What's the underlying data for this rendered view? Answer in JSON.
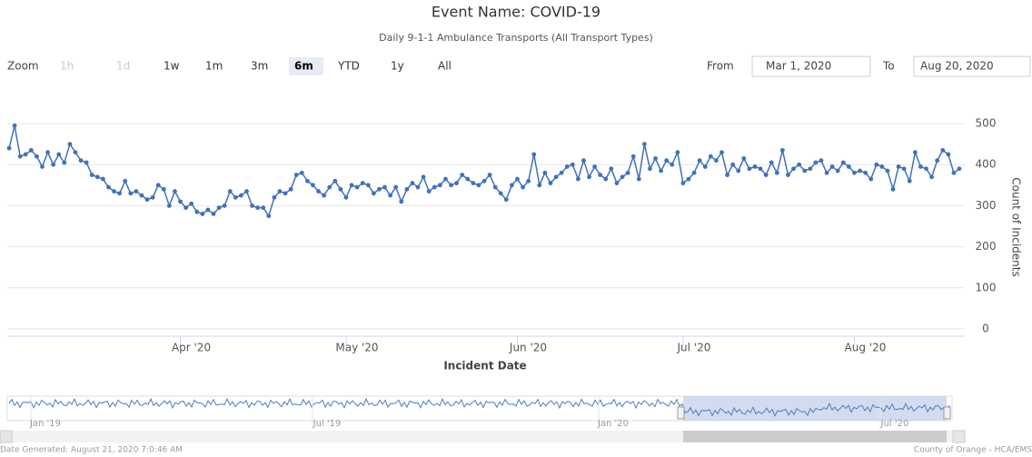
{
  "chart_data": {
    "type": "line",
    "title": "Event Name: COVID-19",
    "subtitle": "Daily 9-1-1 Ambulance Transports (All Transport Types)",
    "range_selector": {
      "zoom_label": "Zoom",
      "buttons": [
        {
          "label": "1h",
          "enabled": false
        },
        {
          "label": "1d",
          "enabled": false
        },
        {
          "label": "1w",
          "enabled": true
        },
        {
          "label": "1m",
          "enabled": true
        },
        {
          "label": "3m",
          "enabled": true
        },
        {
          "label": "6m",
          "enabled": true,
          "selected": true
        },
        {
          "label": "YTD",
          "enabled": true
        },
        {
          "label": "1y",
          "enabled": true
        },
        {
          "label": "All",
          "enabled": true
        }
      ],
      "from_label": "From",
      "from_value": "Mar 1, 2020",
      "to_label": "To",
      "to_value": "Aug 20, 2020"
    },
    "x_label": "Incident Date",
    "y_label": "Count of Incidents",
    "xlim": [
      0,
      172
    ],
    "xticks": [
      {
        "value": 31,
        "label": "Apr '20"
      },
      {
        "value": 61,
        "label": "May '20"
      },
      {
        "value": 92,
        "label": "Jun '20"
      },
      {
        "value": 122,
        "label": "Jul '20"
      },
      {
        "value": 153,
        "label": "Aug '20"
      }
    ],
    "ylim": [
      0,
      500
    ],
    "yticks": [
      0,
      100,
      200,
      300,
      400,
      500
    ],
    "grid": true,
    "series": [
      {
        "color": "#3f72b8",
        "values": [
          440,
          495,
          420,
          425,
          435,
          420,
          395,
          430,
          400,
          425,
          405,
          450,
          430,
          410,
          405,
          375,
          370,
          365,
          345,
          335,
          330,
          360,
          330,
          335,
          325,
          315,
          320,
          350,
          340,
          300,
          335,
          310,
          295,
          305,
          285,
          280,
          290,
          280,
          295,
          300,
          335,
          320,
          325,
          335,
          300,
          295,
          295,
          275,
          320,
          335,
          330,
          340,
          375,
          380,
          360,
          350,
          335,
          325,
          345,
          360,
          340,
          320,
          350,
          345,
          355,
          350,
          330,
          340,
          345,
          325,
          345,
          310,
          340,
          355,
          345,
          370,
          335,
          345,
          350,
          365,
          350,
          355,
          375,
          365,
          355,
          350,
          360,
          375,
          345,
          330,
          315,
          350,
          365,
          345,
          360,
          425,
          350,
          380,
          355,
          370,
          380,
          395,
          400,
          365,
          410,
          370,
          395,
          375,
          365,
          390,
          355,
          370,
          380,
          420,
          365,
          450,
          390,
          415,
          385,
          410,
          400,
          430,
          355,
          365,
          380,
          410,
          395,
          420,
          410,
          430,
          375,
          400,
          385,
          415,
          390,
          395,
          390,
          375,
          405,
          380,
          435,
          375,
          390,
          400,
          385,
          390,
          405,
          410,
          380,
          395,
          385,
          405,
          395,
          380,
          385,
          380,
          365,
          400,
          395,
          385,
          340,
          395,
          390,
          360,
          430,
          395,
          390,
          370,
          410,
          435,
          425,
          380,
          390
        ]
      }
    ],
    "navigator_labels": [
      "Jan '19",
      "Jul '19",
      "Jan '20",
      "Jul '20"
    ],
    "footer_left": "Date Generated: August 21, 2020 7:0:46 AM",
    "footer_right": "County of Orange - HCA/EMS"
  }
}
